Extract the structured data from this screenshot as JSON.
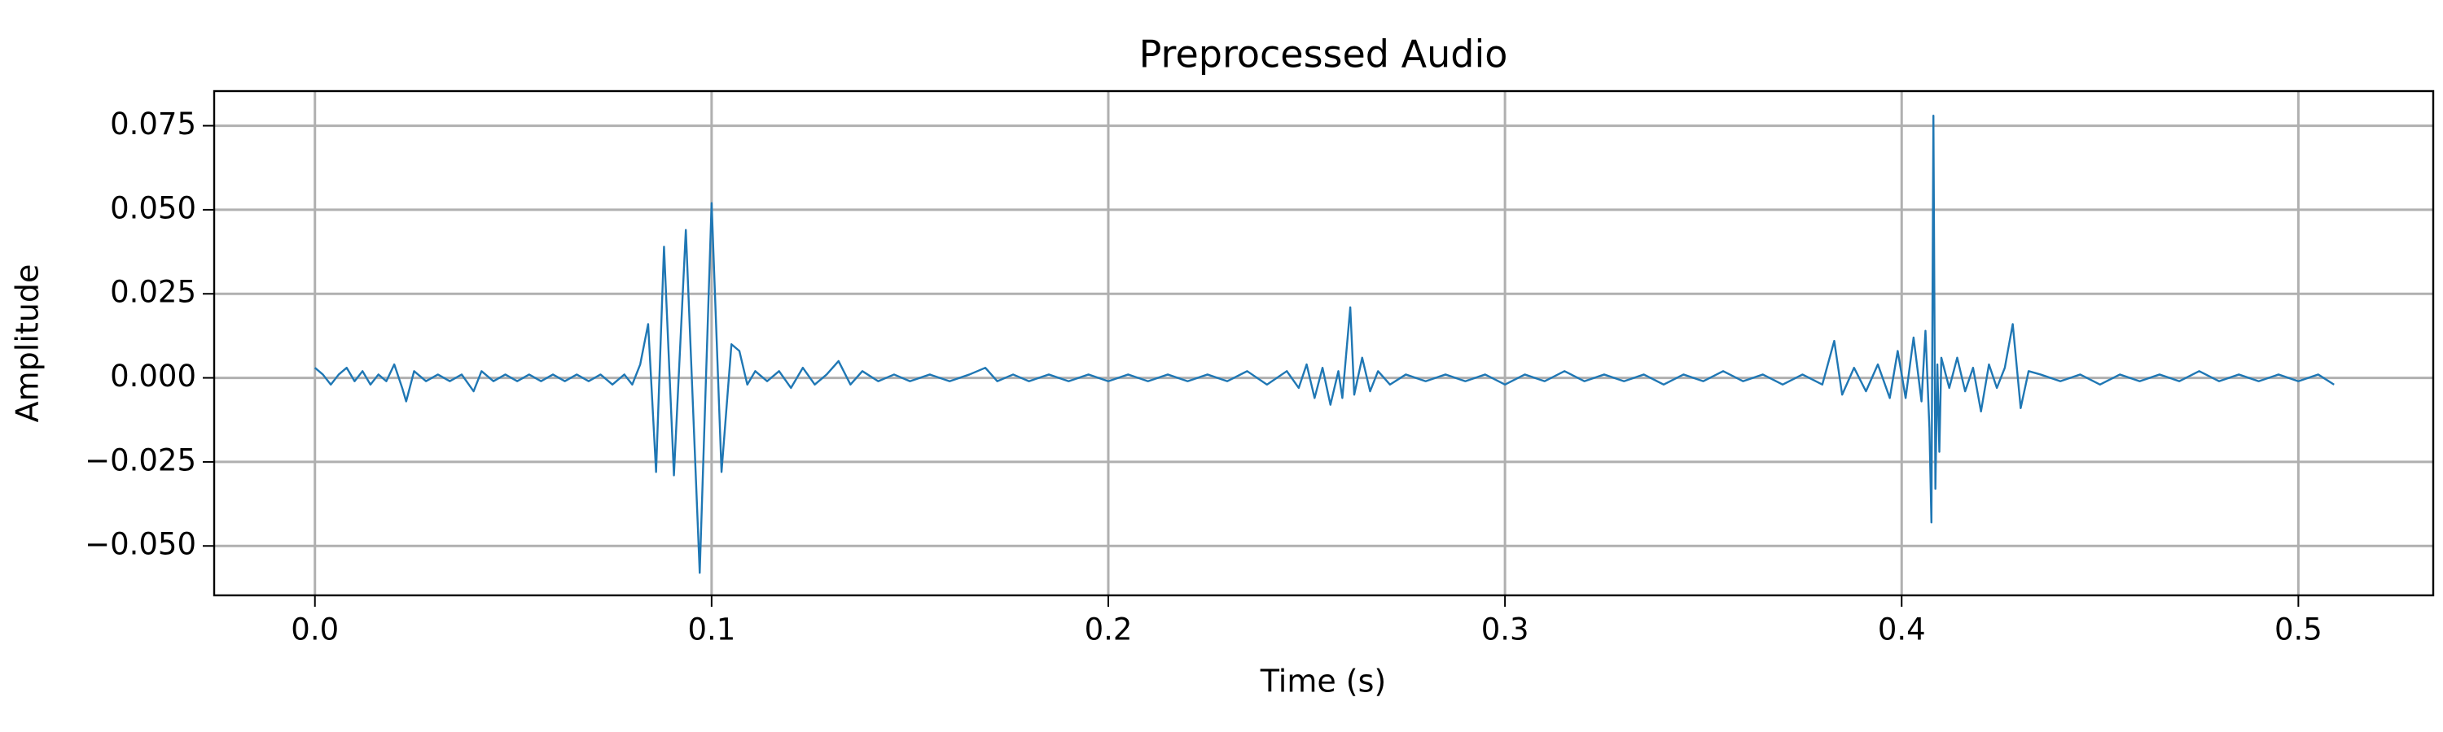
{
  "chart_data": {
    "type": "line",
    "title": "Preprocessed Audio",
    "xlabel": "Time (s)",
    "ylabel": "Amplitude",
    "color": "#1f77b4",
    "grid": true,
    "xlim": [
      -0.0254,
      0.534
    ],
    "ylim": [
      -0.0647,
      0.0853
    ],
    "xticks": [
      {
        "value": 0,
        "label": "0.0"
      },
      0.1,
      0.2,
      0.3,
      0.4,
      0.5
    ],
    "yticks": [
      {
        "value": -0.05,
        "label": "−0.050"
      },
      {
        "value": -0.025,
        "label": "−0.025"
      },
      {
        "value": 0,
        "label": "0.000"
      },
      0.025,
      {
        "value": 0.05,
        "label": "0.050"
      },
      0.075
    ],
    "x": [
      0,
      0.002,
      0.004,
      0.006,
      0.008,
      0.01,
      0.012,
      0.014,
      0.016,
      0.018,
      0.02,
      0.022,
      0.023,
      0.025,
      0.028,
      0.031,
      0.034,
      0.037,
      0.04,
      0.042,
      0.045,
      0.048,
      0.051,
      0.054,
      0.057,
      0.06,
      0.063,
      0.066,
      0.069,
      0.072,
      0.075,
      0.078,
      0.08,
      0.082,
      0.084,
      0.086,
      0.088,
      0.0905,
      0.0935,
      0.097,
      0.1,
      0.1025,
      0.105,
      0.107,
      0.109,
      0.111,
      0.114,
      0.117,
      0.12,
      0.123,
      0.126,
      0.129,
      0.132,
      0.135,
      0.138,
      0.142,
      0.146,
      0.15,
      0.155,
      0.16,
      0.165,
      0.169,
      0.172,
      0.176,
      0.18,
      0.185,
      0.19,
      0.195,
      0.2,
      0.205,
      0.21,
      0.215,
      0.22,
      0.225,
      0.23,
      0.235,
      0.24,
      0.245,
      0.248,
      0.25,
      0.252,
      0.254,
      0.256,
      0.258,
      0.259,
      0.261,
      0.262,
      0.264,
      0.266,
      0.268,
      0.271,
      0.275,
      0.28,
      0.285,
      0.29,
      0.295,
      0.3,
      0.305,
      0.31,
      0.315,
      0.32,
      0.325,
      0.33,
      0.335,
      0.34,
      0.345,
      0.35,
      0.355,
      0.36,
      0.365,
      0.37,
      0.375,
      0.38,
      0.383,
      0.385,
      0.388,
      0.391,
      0.394,
      0.397,
      0.399,
      0.401,
      0.403,
      0.405,
      0.406,
      0.407,
      0.4075,
      0.408,
      0.4085,
      0.409,
      0.4095,
      0.41,
      0.412,
      0.414,
      0.416,
      0.418,
      0.42,
      0.422,
      0.424,
      0.426,
      0.428,
      0.43,
      0.432,
      0.435,
      0.44,
      0.445,
      0.45,
      0.455,
      0.46,
      0.465,
      0.47,
      0.475,
      0.48,
      0.485,
      0.49,
      0.495,
      0.5,
      0.505,
      0.509
    ],
    "values": [
      0.003,
      0.001,
      -0.002,
      0.001,
      0.003,
      -0.001,
      0.002,
      -0.002,
      0.001,
      -0.001,
      0.004,
      -0.003,
      -0.007,
      0.002,
      -0.001,
      0.001,
      -0.001,
      0.001,
      -0.004,
      0.002,
      -0.001,
      0.001,
      -0.001,
      0.001,
      -0.001,
      0.001,
      -0.001,
      0.001,
      -0.001,
      0.001,
      -0.002,
      0.001,
      -0.002,
      0.004,
      0.016,
      -0.028,
      0.039,
      -0.029,
      0.044,
      -0.058,
      0.052,
      -0.028,
      0.01,
      0.008,
      -0.002,
      0.002,
      -0.001,
      0.002,
      -0.003,
      0.003,
      -0.002,
      0.001,
      0.005,
      -0.002,
      0.002,
      -0.001,
      0.001,
      -0.001,
      0.001,
      -0.001,
      0.001,
      0.003,
      -0.001,
      0.001,
      -0.001,
      0.001,
      -0.001,
      0.001,
      -0.001,
      0.001,
      -0.001,
      0.001,
      -0.001,
      0.001,
      -0.001,
      0.002,
      -0.002,
      0.002,
      -0.003,
      0.004,
      -0.006,
      0.003,
      -0.008,
      0.002,
      -0.006,
      0.021,
      -0.005,
      0.006,
      -0.004,
      0.002,
      -0.002,
      0.001,
      -0.001,
      0.001,
      -0.001,
      0.001,
      -0.002,
      0.001,
      -0.001,
      0.002,
      -0.001,
      0.001,
      -0.001,
      0.001,
      -0.002,
      0.001,
      -0.001,
      0.002,
      -0.001,
      0.001,
      -0.002,
      0.001,
      -0.002,
      0.011,
      -0.005,
      0.003,
      -0.004,
      0.004,
      -0.006,
      0.008,
      -0.006,
      0.012,
      -0.007,
      0.014,
      -0.015,
      -0.043,
      0.078,
      -0.033,
      0.004,
      -0.022,
      0.006,
      -0.003,
      0.006,
      -0.004,
      0.003,
      -0.01,
      0.004,
      -0.003,
      0.003,
      0.016,
      -0.009,
      0.002,
      0.001,
      -0.001,
      0.001,
      -0.002,
      0.001,
      -0.001,
      0.001,
      -0.001,
      0.002,
      -0.001,
      0.001,
      -0.001,
      0.001,
      -0.001,
      0.001,
      -0.002
    ]
  }
}
